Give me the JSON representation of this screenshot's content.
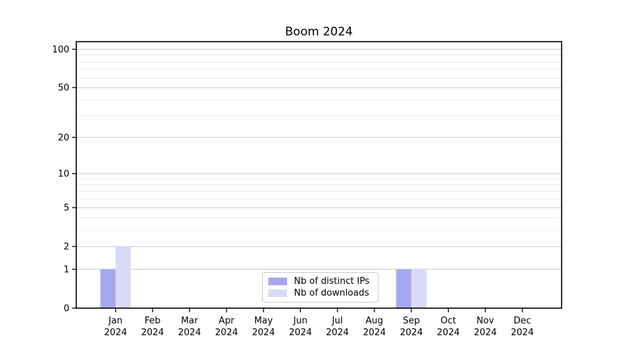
{
  "chart_data": {
    "type": "bar",
    "title": "Boom 2024",
    "categories": [
      "Jan",
      "Feb",
      "Mar",
      "Apr",
      "May",
      "Jun",
      "Jul",
      "Aug",
      "Sep",
      "Oct",
      "Nov",
      "Dec"
    ],
    "category_sublabel": "2024",
    "series": [
      {
        "name": "Nb of distinct IPs",
        "color": "#a7a7f0",
        "values": [
          1,
          0,
          0,
          0,
          0,
          0,
          0,
          0,
          1,
          0,
          0,
          0
        ]
      },
      {
        "name": "Nb of downloads",
        "color": "#dadaf7",
        "values": [
          2,
          0,
          0,
          0,
          0,
          0,
          0,
          0,
          1,
          0,
          0,
          0
        ]
      }
    ],
    "yscale": "log10(1+y)",
    "yticks": [
      0,
      1,
      2,
      5,
      10,
      20,
      50,
      100
    ],
    "minor_yticks": [
      3,
      4,
      6,
      7,
      8,
      9,
      30,
      40,
      60,
      70,
      80,
      90
    ],
    "ylim": [
      0,
      114
    ],
    "xlabel": "",
    "ylabel": "",
    "grid": "horizontal",
    "legend_position": "inside-bottom-center",
    "colors": {
      "grid_major": "#c6c6c6",
      "grid_minor": "#ececec",
      "axis_frame": "#000000",
      "tick_label": "#000000",
      "background": "#ffffff"
    }
  }
}
